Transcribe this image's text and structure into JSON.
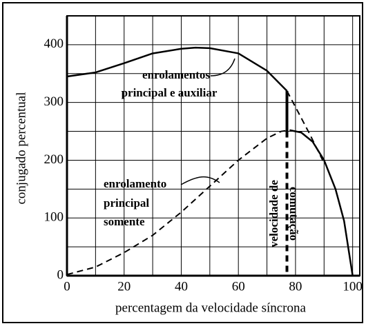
{
  "chart_data": {
    "type": "line",
    "x_label": "percentagem da velocidade síncrona",
    "y_label": "conjugado percentual",
    "xlim": [
      0,
      102.5
    ],
    "ylim": [
      0,
      450
    ],
    "xticks": [
      0,
      20,
      40,
      60,
      80,
      100
    ],
    "yticks": [
      0,
      100,
      200,
      300,
      400
    ],
    "xgrid": [
      0,
      10,
      20,
      30,
      40,
      50,
      60,
      70,
      80,
      90,
      100
    ],
    "ygrid": [
      0,
      50,
      100,
      150,
      200,
      250,
      300,
      350,
      400
    ],
    "grid": true,
    "series": [
      {
        "color": "#000000",
        "dash": false,
        "width": 2.5,
        "x": [
          0,
          10,
          20,
          30,
          40,
          45,
          50,
          60,
          70,
          77
        ],
        "values": [
          345,
          352,
          368,
          385,
          393,
          395,
          394,
          385,
          355,
          320
        ]
      },
      {
        "color": "#000000",
        "dash": true,
        "width": 2,
        "x": [
          77,
          80,
          85,
          90
        ],
        "values": [
          320,
          292,
          245,
          195
        ]
      },
      {
        "color": "#000000",
        "dash": true,
        "width": 2,
        "x": [
          0,
          10,
          20,
          30,
          40,
          50,
          60,
          70,
          75,
          78
        ],
        "values": [
          2,
          15,
          40,
          70,
          110,
          155,
          200,
          238,
          250,
          252
        ]
      },
      {
        "color": "#000000",
        "dash": false,
        "width": 2.5,
        "x": [
          78,
          82,
          86,
          90,
          94,
          97,
          100
        ],
        "values": [
          252,
          248,
          232,
          200,
          150,
          95,
          0
        ]
      },
      {
        "color": "#000000",
        "dash": false,
        "width": 4,
        "x": [
          77,
          77
        ],
        "values": [
          320,
          250
        ]
      },
      {
        "color": "#000000",
        "dash": true,
        "width": 4,
        "x": [
          77,
          77
        ],
        "values": [
          250,
          0
        ]
      }
    ],
    "annotations": [
      {
        "lines": [
          "enrolamentos",
          "principal e auxiliar"
        ]
      },
      {
        "lines": [
          "enrolamento",
          "principal",
          "somente"
        ]
      },
      {
        "lines": [
          "velocidade de",
          "comutação"
        ]
      }
    ]
  }
}
